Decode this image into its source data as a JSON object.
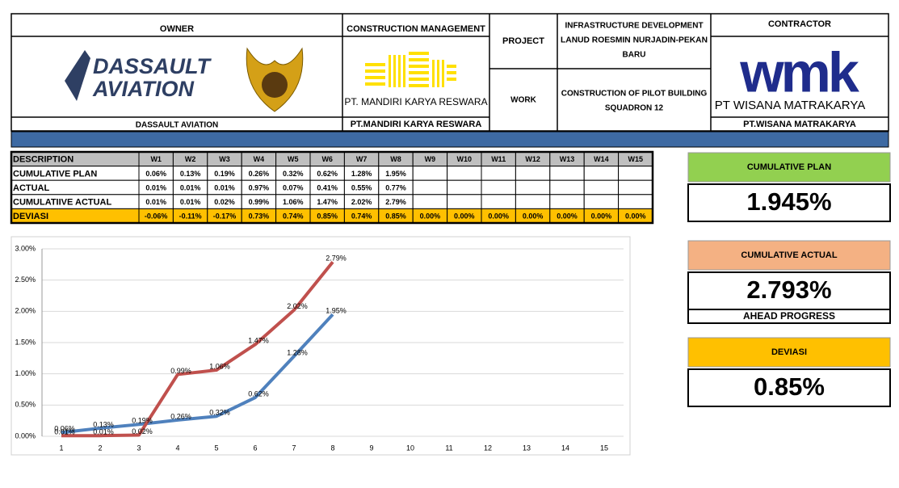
{
  "header": {
    "owner_label": "OWNER",
    "cm_label": "CONSTRUCTION MANAGEMENT",
    "project_label": "PROJECT",
    "project": [
      "INFRASTRUCTURE DEVELOPMENT",
      "LANUD ROESMIN NURJADIN-PEKAN",
      "BARU"
    ],
    "work_label": "WORK",
    "work": [
      "CONSTRUCTION OF PILOT BUILDING",
      "SQUADRON 12"
    ],
    "contractor_label": "CONTRACTOR",
    "owner_name": "DASSAULT AVIATION",
    "cm_name": "PT.MANDIRI KARYA RESWARA",
    "contractor_name": "PT.WISANA MATRAKARYA",
    "logos": {
      "dassault": [
        "DASSAULT",
        "AVIATION"
      ],
      "mandiri": "PT. MANDIRI KARYA RESWARA",
      "wmk": "wmk",
      "wisana": "PT WISANA MATRAKARYA"
    }
  },
  "table": {
    "header": [
      "DESCRIPTION",
      "W1",
      "W2",
      "W3",
      "W4",
      "W5",
      "W6",
      "W7",
      "W8",
      "W9",
      "W10",
      "W11",
      "W12",
      "W13",
      "W14",
      "W15"
    ],
    "rows": [
      {
        "label": "CUMULATIVE PLAN",
        "cells": [
          "0.06%",
          "0.13%",
          "0.19%",
          "0.26%",
          "0.32%",
          "0.62%",
          "1.28%",
          "1.95%"
        ]
      },
      {
        "label": "ACTUAL",
        "cells": [
          "0.01%",
          "0.01%",
          "0.01%",
          "0.97%",
          "0.07%",
          "0.41%",
          "0.55%",
          "0.77%"
        ]
      },
      {
        "label": "CUMULATIIVE ACTUAL",
        "cells": [
          "0.01%",
          "0.01%",
          "0.02%",
          "0.99%",
          "1.06%",
          "1.47%",
          "2.02%",
          "2.79%"
        ]
      },
      {
        "label": "DEVIASI",
        "cells": [
          "-0.06%",
          "-0.11%",
          "-0.17%",
          "0.73%",
          "0.74%",
          "0.85%",
          "0.74%",
          "0.85%",
          "0.00%",
          "0.00%",
          "0.00%",
          "0.00%",
          "0.00%",
          "0.00%",
          "0.00%"
        ]
      }
    ]
  },
  "kpis": [
    {
      "label": "CUMULATIVE PLAN",
      "value": "1.945%",
      "color": "#92d050"
    },
    {
      "label": "CUMULATIVE ACTUAL",
      "value": "2.793%",
      "color": "#f4b183",
      "status": "AHEAD PROGRESS"
    },
    {
      "label": "DEVIASI",
      "value": "0.85%",
      "color": "#ffc000"
    }
  ],
  "chart_data": {
    "type": "line",
    "categories": [
      "1",
      "2",
      "3",
      "4",
      "5",
      "6",
      "7",
      "8",
      "9",
      "10",
      "11",
      "12",
      "13",
      "14",
      "15"
    ],
    "series": [
      {
        "color": "#4f81bd",
        "values": [
          0.06,
          0.13,
          0.19,
          0.26,
          0.32,
          0.62,
          1.28,
          1.95,
          null,
          null,
          null,
          null,
          null,
          null,
          null
        ],
        "value_labels": [
          "0.06%",
          "0.13%",
          "0.19%",
          "0.26%",
          "0.32%",
          "0.62%",
          "1.28%",
          "1.95%",
          null,
          null,
          null,
          null,
          null,
          null,
          null
        ]
      },
      {
        "color": "#c0504d",
        "values": [
          0.01,
          0.01,
          0.02,
          0.99,
          1.06,
          1.47,
          2.02,
          2.79,
          null,
          null,
          null,
          null,
          null,
          null,
          null
        ],
        "value_labels": [
          "0.01%",
          "0.01%",
          "0.02%",
          "0.99%",
          "1.06%",
          "1.47%",
          "2.02%",
          "2.79%",
          null,
          null,
          null,
          null,
          null,
          null,
          null
        ]
      }
    ],
    "ylim": [
      0,
      3
    ],
    "yticks": [
      {
        "value": 0,
        "label": "0.00%"
      },
      {
        "value": 0.5,
        "label": "0.50%"
      },
      {
        "value": 1,
        "label": "1.00%"
      },
      {
        "value": 1.5,
        "label": "1.50%"
      },
      {
        "value": 2,
        "label": "2.00%"
      },
      {
        "value": 2.5,
        "label": "2.50%"
      },
      {
        "value": 3,
        "label": "3.00%"
      }
    ],
    "grid": true
  }
}
